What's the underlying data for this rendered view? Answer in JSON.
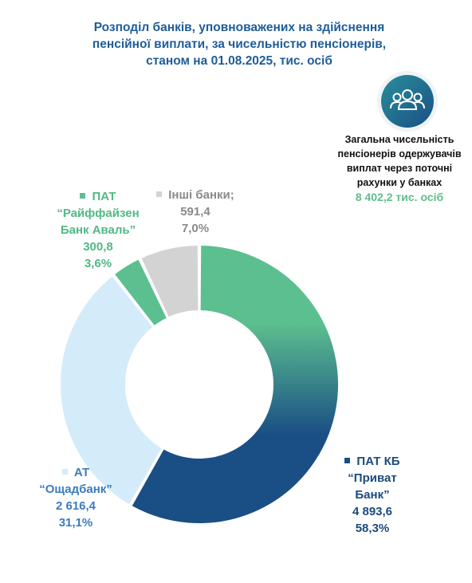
{
  "title": {
    "line1": "Розподіл банків, уповноважених на здійснення",
    "line2": "пенсійної виплати, за чисельністю пенсіонерів,",
    "line3": "станом на 01.08.2025, тис. осіб"
  },
  "total": {
    "line1": "Загальна чисельність",
    "line2": "пенсіонерів одержувачів",
    "line3": "виплат через поточні",
    "line4": "рахунки у банках",
    "value": "8 402,2 тис. осіб",
    "icon": "people-group-icon"
  },
  "chart_data": {
    "type": "pie",
    "donut": true,
    "unit": "тис. осіб",
    "slices": [
      {
        "label": "ПАТ КБ “Приват Банк”",
        "name_lines": [
          "ПАТ КБ",
          "“Приват",
          "Банк”"
        ],
        "value": 4893.6,
        "value_text": "4 893,6",
        "percent_text": "58,3%",
        "color_start": "#5cbf8f",
        "color_end": "#1a4f85",
        "label_color": "#1b4b7c"
      },
      {
        "label": "АТ “Ощадбанк”",
        "name_lines": [
          "АТ",
          "“Ощадбанк”"
        ],
        "value": 2616.4,
        "value_text": "2 616,4",
        "percent_text": "31,1%",
        "color_start": "#d4ecf9",
        "color_end": "#d4ecf9",
        "label_color": "#3a7bbf"
      },
      {
        "label": "ПАТ “Райффайзен Банк Аваль”",
        "name_lines": [
          "ПАТ",
          "“Райффайзен",
          "Банк Аваль”"
        ],
        "value": 300.8,
        "value_text": "300,8",
        "percent_text": "3,6%",
        "color_start": "#5cbf8f",
        "color_end": "#5cbf8f",
        "label_color": "#52b883"
      },
      {
        "label": "Інші банки;",
        "name_lines": [
          "Інші банки;"
        ],
        "value": 591.4,
        "value_text": "591,4",
        "percent_text": "7,0%",
        "color_start": "#d3d3d3",
        "color_end": "#d3d3d3",
        "label_color": "#8a8a8a"
      }
    ]
  }
}
